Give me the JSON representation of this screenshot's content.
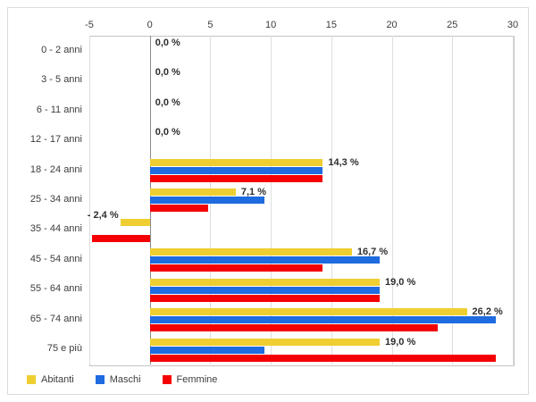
{
  "chart_data": {
    "type": "bar",
    "orientation": "horizontal",
    "title": "",
    "categories": [
      "0 - 2 anni",
      "3 - 5 anni",
      "6 - 11 anni",
      "12 - 17 anni",
      "18 - 24 anni",
      "25 - 34 anni",
      "35 - 44 anni",
      "45 - 54 anni",
      "55 - 64 anni",
      "65 - 74 anni",
      "75 e più"
    ],
    "series": [
      {
        "name": "Abitanti",
        "color": "#EFCE31",
        "values": [
          0,
          0,
          0,
          0,
          14.3,
          7.1,
          -2.4,
          16.7,
          19.0,
          26.2,
          19.0
        ]
      },
      {
        "name": "Maschi",
        "color": "#1F6BE0",
        "values": [
          0,
          0,
          0,
          0,
          14.3,
          9.5,
          0,
          19.0,
          19.0,
          28.6,
          9.5
        ]
      },
      {
        "name": "Femmine",
        "color": "#F40000",
        "values": [
          0,
          0,
          0,
          0,
          14.3,
          4.8,
          -4.8,
          14.3,
          19.0,
          23.8,
          28.6
        ]
      }
    ],
    "value_labels": [
      "0,0 %",
      "0,0 %",
      "0,0 %",
      "0,0 %",
      "14,3 %",
      "7,1 %",
      "- 2,4 %",
      "16,7 %",
      "19,0 %",
      "26,2 %",
      "19,0 %"
    ],
    "value_labels_series": "Abitanti",
    "x_ticks": [
      -5,
      0,
      5,
      10,
      15,
      20,
      25,
      30
    ],
    "xlim": [
      -5,
      30
    ],
    "unit": "%",
    "grid": true,
    "legend_position": "bottom",
    "legend_labels": [
      "Abitanti",
      "Maschi",
      "Femmine"
    ]
  }
}
